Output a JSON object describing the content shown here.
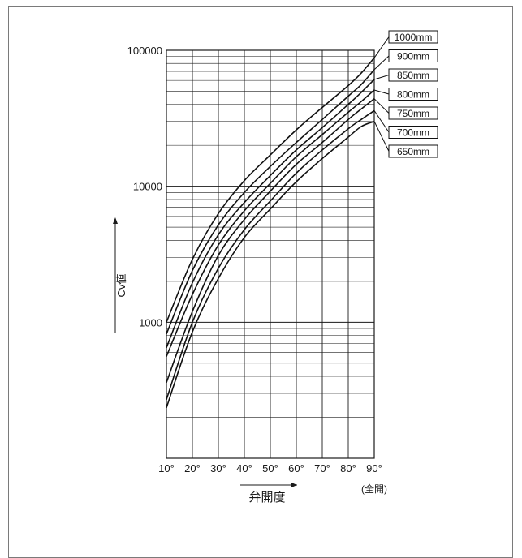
{
  "chart_data": {
    "type": "line",
    "xlabel": "弁開度",
    "ylabel": "Cv値",
    "x_ticks": [
      "10°",
      "20°",
      "30°",
      "40°",
      "50°",
      "60°",
      "70°",
      "80°",
      "90°"
    ],
    "x_full_open_label": "(全開)",
    "y_ticks": [
      "1000",
      "10000",
      "100000"
    ],
    "xlim": [
      10,
      90
    ],
    "ylim": [
      100,
      100000
    ],
    "y_scale": "log",
    "grid": true,
    "legend_placement": "right-of-curves",
    "x": [
      10,
      20,
      30,
      40,
      50,
      60,
      70,
      80,
      85,
      90
    ],
    "series": [
      {
        "name": "1000mm",
        "values": [
          1000,
          2900,
          6300,
          11000,
          17000,
          26000,
          38000,
          55000,
          68000,
          88000
        ]
      },
      {
        "name": "900mm",
        "values": [
          820,
          2400,
          5200,
          9000,
          14000,
          21000,
          31000,
          46000,
          56000,
          72000
        ]
      },
      {
        "name": "850mm",
        "values": [
          650,
          1950,
          4400,
          7600,
          12000,
          18500,
          27000,
          40000,
          49000,
          61000
        ]
      },
      {
        "name": "800mm",
        "values": [
          560,
          1600,
          3700,
          6600,
          10500,
          16500,
          24000,
          35000,
          42000,
          51000
        ]
      },
      {
        "name": "750mm",
        "values": [
          360,
          1200,
          3100,
          5700,
          9200,
          14500,
          21000,
          31000,
          37000,
          44000
        ]
      },
      {
        "name": "700mm",
        "values": [
          270,
          1000,
          2500,
          4800,
          7800,
          12500,
          18500,
          26500,
          31000,
          36000
        ]
      },
      {
        "name": "650mm",
        "values": [
          235,
          850,
          2100,
          4200,
          6800,
          10800,
          16000,
          23000,
          27500,
          30000
        ]
      }
    ]
  }
}
